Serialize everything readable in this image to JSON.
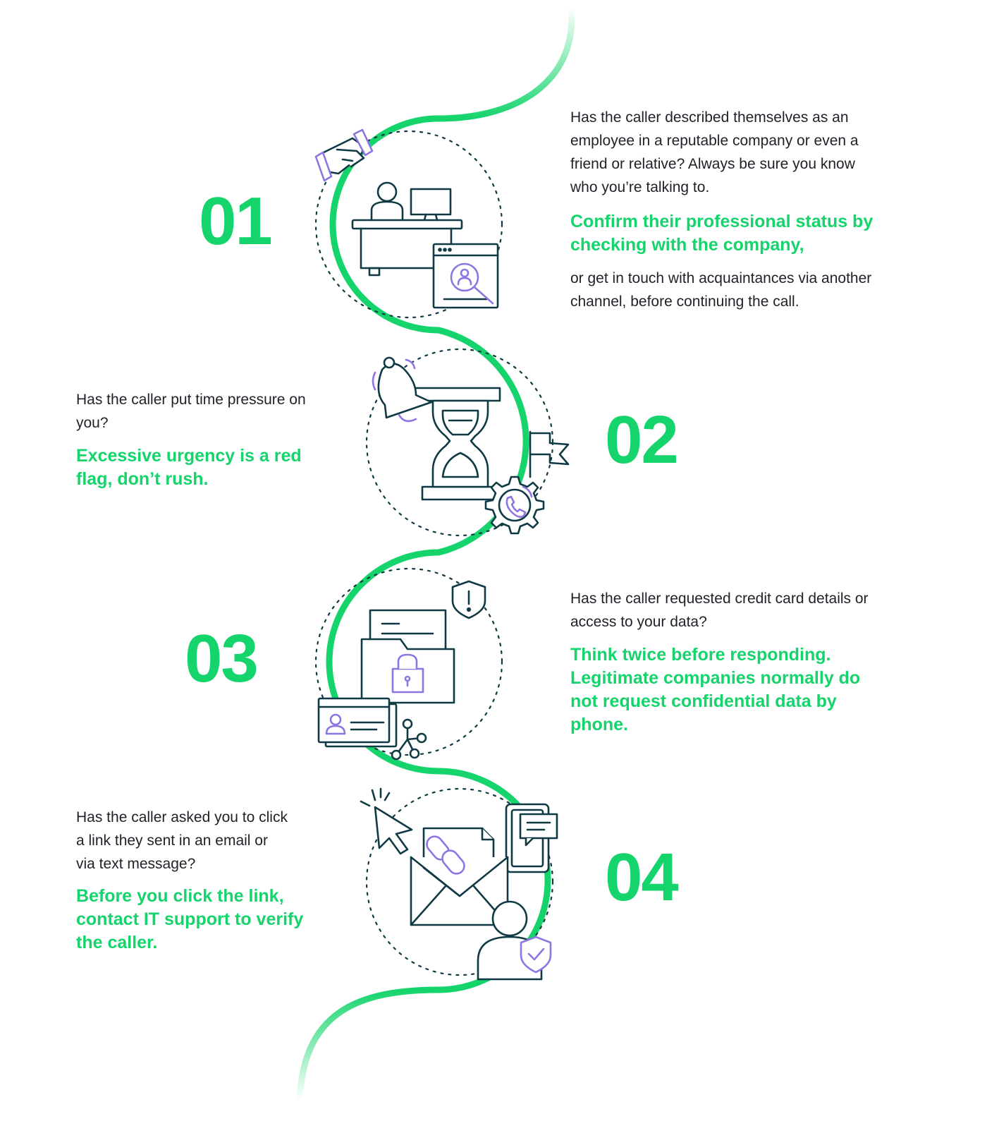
{
  "colors": {
    "accent": "#15d46c",
    "ink": "#0f3a44",
    "purple": "#8e75e2",
    "text": "#1e2228"
  },
  "steps": [
    {
      "number": "01",
      "question": "Has the caller described themselves as an employee in a reputable company or even a friend or relative? Always be sure you know who you’re talking to.",
      "advice": "Confirm their professional status by checking with the company,",
      "note": "or get in touch with acquaintances via another channel, before continuing the call.",
      "icons": [
        "handshake-icon",
        "desk-worker-icon",
        "profile-search-window-icon"
      ]
    },
    {
      "number": "02",
      "question": "Has the caller put time pressure on you?",
      "advice": "Excessive urgency is a red flag, don’t rush.",
      "icons": [
        "alarm-bell-icon",
        "hourglass-icon",
        "flag-icon",
        "phone-gear-icon"
      ]
    },
    {
      "number": "03",
      "question": "Has the caller requested credit card details or access to your data?",
      "advice": "Think twice before responding. Legitimate companies normally do not request confidential data by phone.",
      "icons": [
        "warning-shield-icon",
        "locked-folder-icon",
        "id-card-icon",
        "network-nodes-icon"
      ]
    },
    {
      "number": "04",
      "question": "Has the caller asked you to click a link they sent in an email or via text message?",
      "advice": "Before you click the link, contact IT support to verify the caller.",
      "icons": [
        "cursor-click-icon",
        "email-link-icon",
        "phone-message-icon",
        "verified-user-icon"
      ]
    }
  ]
}
